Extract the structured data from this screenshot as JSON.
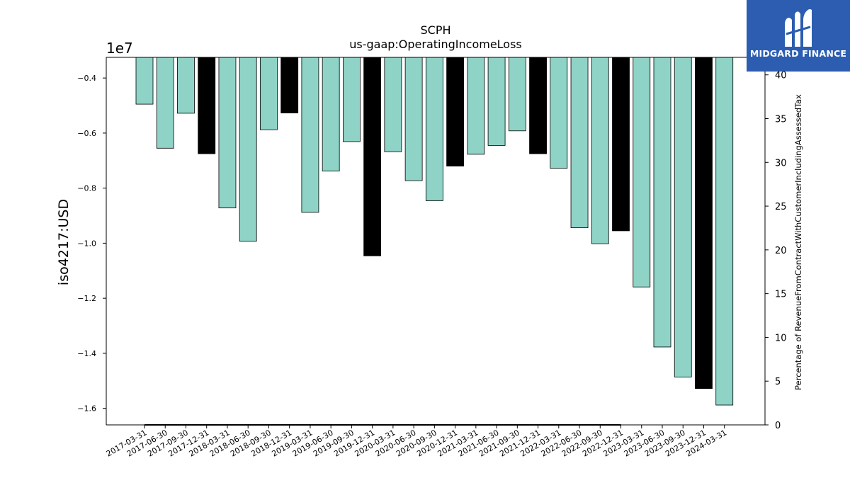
{
  "chart_data": {
    "type": "bar",
    "title": "SCPH",
    "subtitle": "us-gaap:OperatingIncomeLoss",
    "ylabel": "iso4217:USD",
    "ylabel_right": "Percentage of RevenueFromContractWithCustomerIncludingAssessedTax",
    "offset_text": "1e7",
    "ylim": [
      -16600000,
      -3250000
    ],
    "ylim_right": [
      0,
      42
    ],
    "yticks": [
      -4000000,
      -6000000,
      -8000000,
      -10000000,
      -12000000,
      -14000000,
      -16000000
    ],
    "ytick_labels": [
      "−0.4",
      "−0.6",
      "−0.8",
      "−1.0",
      "−1.2",
      "−1.4",
      "−1.6"
    ],
    "yticks_right": [
      0,
      5,
      10,
      15,
      20,
      25,
      30,
      35,
      40
    ],
    "categories": [
      "2017-03-31",
      "2017-06-30",
      "2017-09-30",
      "2017-12-31",
      "2018-03-31",
      "2018-06-30",
      "2018-09-30",
      "2018-12-31",
      "2019-03-31",
      "2019-06-30",
      "2019-09-30",
      "2019-12-31",
      "2020-03-31",
      "2020-06-30",
      "2020-09-30",
      "2020-12-31",
      "2021-03-31",
      "2021-06-30",
      "2021-09-30",
      "2021-12-31",
      "2022-03-31",
      "2022-06-30",
      "2022-09-30",
      "2022-12-31",
      "2023-03-31",
      "2023-06-30",
      "2023-09-30",
      "2023-12-31",
      "2024-03-31"
    ],
    "values": [
      -4950000,
      -6550000,
      -5280000,
      -6750000,
      -8720000,
      -9930000,
      -5880000,
      -5270000,
      -8880000,
      -7380000,
      -6310000,
      -10460000,
      -6680000,
      -7730000,
      -8460000,
      -7200000,
      -6770000,
      -6450000,
      -5920000,
      -6750000,
      -7280000,
      -9440000,
      -10020000,
      -9550000,
      -11590000,
      -13770000,
      -14860000,
      -15280000,
      -15880000
    ],
    "highlight": [
      false,
      false,
      false,
      true,
      false,
      false,
      false,
      true,
      false,
      false,
      false,
      true,
      false,
      false,
      false,
      true,
      false,
      false,
      false,
      true,
      false,
      false,
      false,
      true,
      false,
      false,
      false,
      true,
      false
    ],
    "colors": {
      "regular": "#8fd3c7",
      "highlight": "#000000",
      "edge": "#000000"
    },
    "secondary_series": {
      "name": "",
      "values": [
        0,
        0,
        0,
        0,
        0,
        0,
        0,
        0,
        0,
        0,
        0,
        0,
        0,
        0,
        0,
        0,
        0,
        0,
        0,
        0,
        0,
        0,
        0,
        0
      ],
      "color": "#000000"
    },
    "grid": false
  },
  "logo": {
    "text": "MIDGARD FINANCE",
    "background": "#2c5db0",
    "icon": "midgard-logo-icon"
  }
}
